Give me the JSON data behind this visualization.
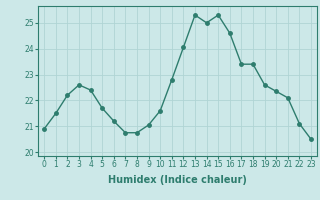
{
  "x": [
    0,
    1,
    2,
    3,
    4,
    5,
    6,
    7,
    8,
    9,
    10,
    11,
    12,
    13,
    14,
    15,
    16,
    17,
    18,
    19,
    20,
    21,
    22,
    23
  ],
  "y": [
    20.9,
    21.5,
    22.2,
    22.6,
    22.4,
    21.7,
    21.2,
    20.75,
    20.75,
    21.05,
    21.6,
    22.8,
    24.05,
    25.3,
    25.0,
    25.3,
    24.6,
    23.4,
    23.4,
    22.6,
    22.35,
    22.1,
    21.1,
    20.5
  ],
  "line_color": "#2e7d6e",
  "marker": "o",
  "marker_size": 2.5,
  "bg_color": "#cce8e8",
  "grid_color": "#b0d4d4",
  "xlabel": "Humidex (Indice chaleur)",
  "xlim": [
    -0.5,
    23.5
  ],
  "ylim": [
    19.85,
    25.65
  ],
  "yticks": [
    20,
    21,
    22,
    23,
    24,
    25
  ],
  "xticks": [
    0,
    1,
    2,
    3,
    4,
    5,
    6,
    7,
    8,
    9,
    10,
    11,
    12,
    13,
    14,
    15,
    16,
    17,
    18,
    19,
    20,
    21,
    22,
    23
  ],
  "tick_fontsize": 5.5,
  "xlabel_fontsize": 7.0
}
